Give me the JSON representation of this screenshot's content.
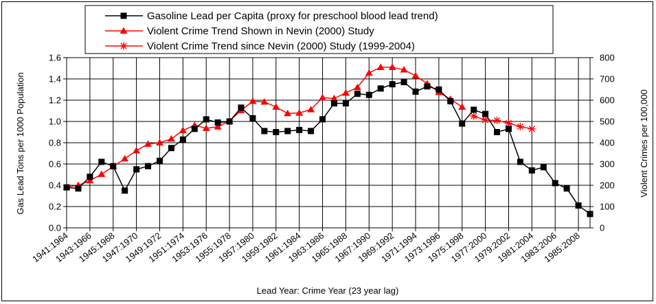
{
  "chart_data": {
    "type": "line",
    "xlabel": "Lead Year: Crime Year (23 year lag)",
    "ylabel_left": "Gas Lead Tons per 1000 Population",
    "ylabel_right": "Violent Crimes per 100,000",
    "ylim_left": [
      0.0,
      1.6
    ],
    "ylim_right": [
      0,
      800
    ],
    "yticks_left": [
      "0.0",
      "0.2",
      "0.4",
      "0.6",
      "0.8",
      "1.0",
      "1.2",
      "1.4",
      "1.6"
    ],
    "yticks_right": [
      "0",
      "100",
      "200",
      "300",
      "400",
      "500",
      "600",
      "700",
      "800"
    ],
    "grid": true,
    "legend_position": "top",
    "x_range": [
      1941,
      1986
    ],
    "x_tick_labels": [
      {
        "x": 1941,
        "label": "1941:1964"
      },
      {
        "x": 1943,
        "label": "1943:1966"
      },
      {
        "x": 1945,
        "label": "1945:1968"
      },
      {
        "x": 1947,
        "label": "1947:1970"
      },
      {
        "x": 1949,
        "label": "1949:1972"
      },
      {
        "x": 1951,
        "label": "1951:1974"
      },
      {
        "x": 1953,
        "label": "1953:1976"
      },
      {
        "x": 1955,
        "label": "1955:1978"
      },
      {
        "x": 1957,
        "label": "1957:1980"
      },
      {
        "x": 1959,
        "label": "1959:1982"
      },
      {
        "x": 1961,
        "label": "1961:1984"
      },
      {
        "x": 1963,
        "label": "1963:1986"
      },
      {
        "x": 1965,
        "label": "1965:1988"
      },
      {
        "x": 1967,
        "label": "1967:1990"
      },
      {
        "x": 1969,
        "label": "1969:1992"
      },
      {
        "x": 1971,
        "label": "1971:1994"
      },
      {
        "x": 1973,
        "label": "1973:1996"
      },
      {
        "x": 1975,
        "label": "1975:1998"
      },
      {
        "x": 1977,
        "label": "1977:2000"
      },
      {
        "x": 1979,
        "label": "1979:2002"
      },
      {
        "x": 1981,
        "label": "1981:2004"
      },
      {
        "x": 1983,
        "label": "1983:2006"
      },
      {
        "x": 1985,
        "label": "1985:2008"
      }
    ],
    "series": [
      {
        "name": "Gasoline Lead per Capita (proxy for preschool blood lead trend)",
        "axis": "left",
        "color": "#000000",
        "marker": "square",
        "x": [
          1941,
          1942,
          1943,
          1944,
          1945,
          1946,
          1947,
          1948,
          1949,
          1950,
          1951,
          1952,
          1953,
          1954,
          1955,
          1956,
          1957,
          1958,
          1959,
          1960,
          1961,
          1962,
          1963,
          1964,
          1965,
          1966,
          1967,
          1968,
          1969,
          1970,
          1971,
          1972,
          1973,
          1974,
          1975,
          1976,
          1977,
          1978,
          1979,
          1980,
          1981,
          1982,
          1983,
          1984,
          1985,
          1986
        ],
        "values": [
          0.38,
          0.37,
          0.48,
          0.62,
          0.58,
          0.35,
          0.55,
          0.58,
          0.63,
          0.75,
          0.83,
          0.93,
          1.02,
          0.99,
          1.0,
          1.13,
          1.03,
          0.91,
          0.9,
          0.91,
          0.92,
          0.91,
          1.02,
          1.17,
          1.17,
          1.26,
          1.25,
          1.31,
          1.35,
          1.37,
          1.28,
          1.33,
          1.3,
          1.19,
          0.98,
          1.11,
          1.07,
          0.9,
          0.93,
          0.62,
          0.54,
          0.57,
          0.42,
          0.37,
          0.21,
          0.13
        ]
      },
      {
        "name": "Violent Crime Trend Shown in Nevin (2000) Study",
        "axis": "right",
        "color": "#ff0000",
        "marker": "triangle",
        "x": [
          1941,
          1942,
          1943,
          1944,
          1945,
          1946,
          1947,
          1948,
          1949,
          1950,
          1951,
          1952,
          1953,
          1954,
          1955,
          1956,
          1957,
          1958,
          1959,
          1960,
          1961,
          1962,
          1963,
          1964,
          1965,
          1966,
          1967,
          1968,
          1969,
          1970,
          1971,
          1972,
          1973,
          1974,
          1975
        ],
        "values": [
          192,
          200,
          222,
          252,
          288,
          325,
          363,
          394,
          400,
          418,
          458,
          482,
          468,
          475,
          503,
          552,
          595,
          592,
          568,
          538,
          540,
          556,
          612,
          608,
          634,
          660,
          728,
          755,
          755,
          743,
          715,
          678,
          637,
          605,
          568
        ]
      },
      {
        "name": "Violent Crime Trend since Nevin (2000) Study (1999-2004)",
        "axis": "right",
        "color": "#ff0000",
        "marker": "star",
        "x": [
          1976,
          1977,
          1978,
          1979,
          1980,
          1981
        ],
        "values": [
          525,
          507,
          505,
          492,
          476,
          465
        ]
      }
    ]
  }
}
